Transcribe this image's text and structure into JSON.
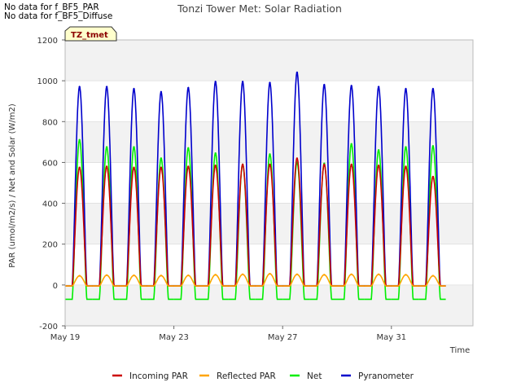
{
  "notes": [
    "No data for f_BF5_PAR",
    "No data for f_BF5_Diffuse"
  ],
  "chart_data": {
    "type": "line",
    "title": "Tonzi Tower Met: Solar Radiation",
    "xlabel": "Time",
    "ylabel": "PAR (umol/m2/s) / Net and Solar (W/m2)",
    "badge": "TZ_tmet",
    "xlim_days": [
      0,
      15
    ],
    "ylim": [
      -200,
      1200
    ],
    "yticks": [
      -200,
      0,
      200,
      400,
      600,
      800,
      1000,
      1200
    ],
    "xticks": [
      {
        "day": 0,
        "label": "May 19"
      },
      {
        "day": 4,
        "label": "May 23"
      },
      {
        "day": 8,
        "label": "May 27"
      },
      {
        "day": 12,
        "label": "May 31"
      }
    ],
    "day_dates": [
      "May 19",
      "May 20",
      "May 21",
      "May 22",
      "May 23",
      "May 24",
      "May 25",
      "May 26",
      "May 27",
      "May 28",
      "May 29",
      "May 30",
      "May 31",
      "Jun 1"
    ],
    "series": [
      {
        "name": "Incoming PAR",
        "color": "#cc0000",
        "night": -5,
        "daily_peak": [
          575,
          580,
          575,
          575,
          580,
          585,
          590,
          590,
          620,
          590,
          590,
          585,
          580,
          530
        ]
      },
      {
        "name": "Reflected PAR",
        "color": "#ffa500",
        "night": -5,
        "daily_peak": [
          45,
          48,
          47,
          46,
          47,
          50,
          52,
          55,
          52,
          50,
          52,
          52,
          50,
          45
        ]
      },
      {
        "name": "Net",
        "color": "#00ee00",
        "night": -70,
        "daily_peak": [
          710,
          675,
          675,
          620,
          670,
          645,
          590,
          640,
          600,
          595,
          690,
          660,
          675,
          680
        ]
      },
      {
        "name": "Pyranometer",
        "color": "#0000cc",
        "night": -5,
        "daily_peak": [
          970,
          970,
          960,
          945,
          965,
          995,
          995,
          990,
          1040,
          980,
          975,
          970,
          960,
          960
        ]
      }
    ]
  }
}
